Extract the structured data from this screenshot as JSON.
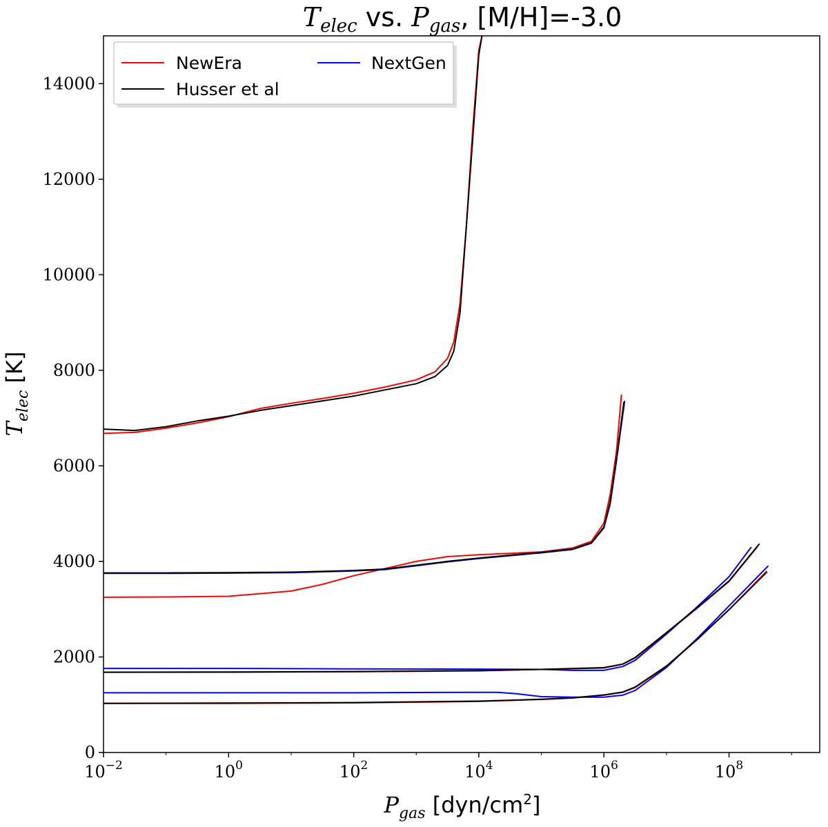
{
  "chart_data": {
    "type": "line",
    "title": {
      "prefix_sym": "T",
      "prefix_sub": "elec",
      "middle": " vs. ",
      "sym2": "P",
      "sym2_sub": "gas",
      "suffix": ", [M/H]=-3.0"
    },
    "xlabel": {
      "sym": "P",
      "sub": "gas",
      "unit_pre": " [dyn/cm",
      "unit_sup": "2",
      "unit_post": "]"
    },
    "ylabel": {
      "sym": "T",
      "sub": "elec",
      "unit": " [K]"
    },
    "x_scale": "log",
    "xlim_log10": [
      -2,
      9.45
    ],
    "ylim": [
      0,
      15000
    ],
    "x_ticks": [
      {
        "base": "10",
        "exp": "−2",
        "value": -2
      },
      {
        "base": "10",
        "exp": "0",
        "value": 0
      },
      {
        "base": "10",
        "exp": "2",
        "value": 2
      },
      {
        "base": "10",
        "exp": "4",
        "value": 4
      },
      {
        "base": "10",
        "exp": "6",
        "value": 6
      },
      {
        "base": "10",
        "exp": "8",
        "value": 8
      }
    ],
    "y_ticks": [
      "0",
      "2000",
      "4000",
      "6000",
      "8000",
      "10000",
      "12000",
      "14000"
    ],
    "y_tick_values": [
      0,
      2000,
      4000,
      6000,
      8000,
      10000,
      12000,
      14000
    ],
    "legend": {
      "position": "top-left",
      "entries": [
        {
          "label": "NewEra",
          "color": "#ff0000"
        },
        {
          "label": "Husser et al",
          "color": "#000000"
        },
        {
          "label": "NextGen",
          "color": "#0000ff"
        }
      ]
    },
    "series": [
      {
        "name": "NewEra",
        "model": "T1",
        "color": "#ff0000",
        "points": [
          [
            -2,
            6680
          ],
          [
            -1.5,
            6700
          ],
          [
            -1,
            6790
          ],
          [
            -0.5,
            6900
          ],
          [
            0,
            7030
          ],
          [
            0.5,
            7200
          ],
          [
            1,
            7310
          ],
          [
            1.5,
            7410
          ],
          [
            2,
            7520
          ],
          [
            2.5,
            7650
          ],
          [
            3,
            7800
          ],
          [
            3.3,
            7970
          ],
          [
            3.5,
            8250
          ],
          [
            3.6,
            8600
          ],
          [
            3.7,
            9400
          ],
          [
            3.8,
            11000
          ],
          [
            3.9,
            13000
          ],
          [
            4,
            14700
          ],
          [
            4.05,
            15000
          ]
        ]
      },
      {
        "name": "Husser et al",
        "model": "T1",
        "color": "#000000",
        "points": [
          [
            -2,
            6770
          ],
          [
            -1.5,
            6740
          ],
          [
            -1,
            6820
          ],
          [
            -0.5,
            6940
          ],
          [
            0,
            7040
          ],
          [
            0.5,
            7160
          ],
          [
            1,
            7260
          ],
          [
            1.5,
            7360
          ],
          [
            2,
            7460
          ],
          [
            2.5,
            7590
          ],
          [
            3,
            7720
          ],
          [
            3.3,
            7870
          ],
          [
            3.5,
            8100
          ],
          [
            3.6,
            8400
          ],
          [
            3.7,
            9200
          ],
          [
            3.8,
            11000
          ],
          [
            3.9,
            12800
          ],
          [
            4,
            14600
          ],
          [
            4.05,
            15000
          ]
        ]
      },
      {
        "name": "NewEra",
        "model": "T2",
        "color": "#ff0000",
        "points": [
          [
            -2,
            3250
          ],
          [
            -1,
            3255
          ],
          [
            0,
            3270
          ],
          [
            1,
            3380
          ],
          [
            1.5,
            3520
          ],
          [
            2,
            3700
          ],
          [
            2.5,
            3850
          ],
          [
            3,
            4000
          ],
          [
            3.5,
            4100
          ],
          [
            4,
            4140
          ],
          [
            4.5,
            4170
          ],
          [
            5,
            4200
          ],
          [
            5.5,
            4280
          ],
          [
            5.8,
            4420
          ],
          [
            6,
            4800
          ],
          [
            6.1,
            5400
          ],
          [
            6.2,
            6300
          ],
          [
            6.28,
            7480
          ]
        ]
      },
      {
        "name": "NextGen",
        "model": "T2",
        "color": "#0000ff",
        "points": [
          [
            -2,
            3750
          ],
          [
            -1,
            3750
          ],
          [
            0,
            3755
          ],
          [
            1,
            3765
          ],
          [
            2,
            3800
          ],
          [
            2.5,
            3830
          ],
          [
            3,
            3910
          ],
          [
            3.5,
            3990
          ],
          [
            4,
            4060
          ],
          [
            4.5,
            4120
          ],
          [
            5,
            4180
          ],
          [
            5.5,
            4250
          ],
          [
            5.8,
            4380
          ],
          [
            6,
            4700
          ],
          [
            6.1,
            5200
          ],
          [
            6.2,
            6100
          ],
          [
            6.33,
            7350
          ]
        ]
      },
      {
        "name": "Husser et al",
        "model": "T2",
        "color": "#000000",
        "points": [
          [
            -2,
            3760
          ],
          [
            -1,
            3760
          ],
          [
            0,
            3765
          ],
          [
            1,
            3775
          ],
          [
            2,
            3810
          ],
          [
            2.5,
            3840
          ],
          [
            3,
            3920
          ],
          [
            3.5,
            4000
          ],
          [
            4,
            4070
          ],
          [
            4.5,
            4130
          ],
          [
            5,
            4190
          ],
          [
            5.5,
            4260
          ],
          [
            5.8,
            4390
          ],
          [
            6,
            4720
          ],
          [
            6.1,
            5250
          ],
          [
            6.2,
            6150
          ],
          [
            6.32,
            7330
          ]
        ]
      },
      {
        "name": "NewEra",
        "model": "T3",
        "color": "#ff0000",
        "points": [
          [
            -2,
            1680
          ],
          [
            0,
            1680
          ],
          [
            2,
            1690
          ],
          [
            4,
            1710
          ],
          [
            5,
            1740
          ],
          [
            5.5,
            1760
          ],
          [
            6,
            1780
          ],
          [
            6.3,
            1850
          ],
          [
            6.5,
            1980
          ],
          [
            7,
            2500
          ],
          [
            7.5,
            3030
          ],
          [
            8,
            3580
          ],
          [
            8.45,
            4300
          ]
        ]
      },
      {
        "name": "NextGen",
        "model": "T3",
        "color": "#0000ff",
        "points": [
          [
            -2,
            1760
          ],
          [
            0,
            1760
          ],
          [
            2,
            1750
          ],
          [
            4,
            1745
          ],
          [
            5,
            1740
          ],
          [
            5.5,
            1720
          ],
          [
            6,
            1720
          ],
          [
            6.3,
            1800
          ],
          [
            6.5,
            1930
          ],
          [
            7,
            2480
          ],
          [
            7.5,
            3060
          ],
          [
            8,
            3680
          ],
          [
            8.35,
            4290
          ]
        ]
      },
      {
        "name": "Husser et al",
        "model": "T3",
        "color": "#000000",
        "points": [
          [
            -2,
            1680
          ],
          [
            0,
            1685
          ],
          [
            2,
            1695
          ],
          [
            4,
            1715
          ],
          [
            5,
            1740
          ],
          [
            5.5,
            1755
          ],
          [
            6,
            1770
          ],
          [
            6.3,
            1850
          ],
          [
            6.5,
            1990
          ],
          [
            7,
            2510
          ],
          [
            7.5,
            3040
          ],
          [
            8,
            3590
          ],
          [
            8.48,
            4360
          ]
        ]
      },
      {
        "name": "NewEra",
        "model": "T4",
        "color": "#ff0000",
        "points": [
          [
            -2,
            1030
          ],
          [
            0,
            1030
          ],
          [
            2,
            1040
          ],
          [
            4,
            1070
          ],
          [
            5,
            1110
          ],
          [
            5.5,
            1140
          ],
          [
            6,
            1200
          ],
          [
            6.3,
            1260
          ],
          [
            6.5,
            1360
          ],
          [
            7,
            1800
          ],
          [
            7.5,
            2370
          ],
          [
            8,
            2990
          ],
          [
            8.6,
            3790
          ]
        ]
      },
      {
        "name": "NextGen",
        "model": "T4",
        "color": "#0000ff",
        "points": [
          [
            -2,
            1250
          ],
          [
            0,
            1250
          ],
          [
            2,
            1250
          ],
          [
            4,
            1260
          ],
          [
            4.3,
            1260
          ],
          [
            4.6,
            1230
          ],
          [
            5,
            1170
          ],
          [
            5.5,
            1160
          ],
          [
            6,
            1160
          ],
          [
            6.3,
            1200
          ],
          [
            6.5,
            1300
          ],
          [
            7,
            1780
          ],
          [
            7.5,
            2400
          ],
          [
            8,
            3070
          ],
          [
            8.62,
            3900
          ]
        ]
      },
      {
        "name": "Husser et al",
        "model": "T4",
        "color": "#000000",
        "points": [
          [
            -2,
            1030
          ],
          [
            0,
            1035
          ],
          [
            2,
            1045
          ],
          [
            4,
            1075
          ],
          [
            5,
            1115
          ],
          [
            5.5,
            1145
          ],
          [
            6,
            1205
          ],
          [
            6.3,
            1265
          ],
          [
            6.5,
            1370
          ],
          [
            7,
            1810
          ],
          [
            7.5,
            2380
          ],
          [
            8,
            2990
          ],
          [
            8.6,
            3770
          ]
        ]
      }
    ]
  }
}
